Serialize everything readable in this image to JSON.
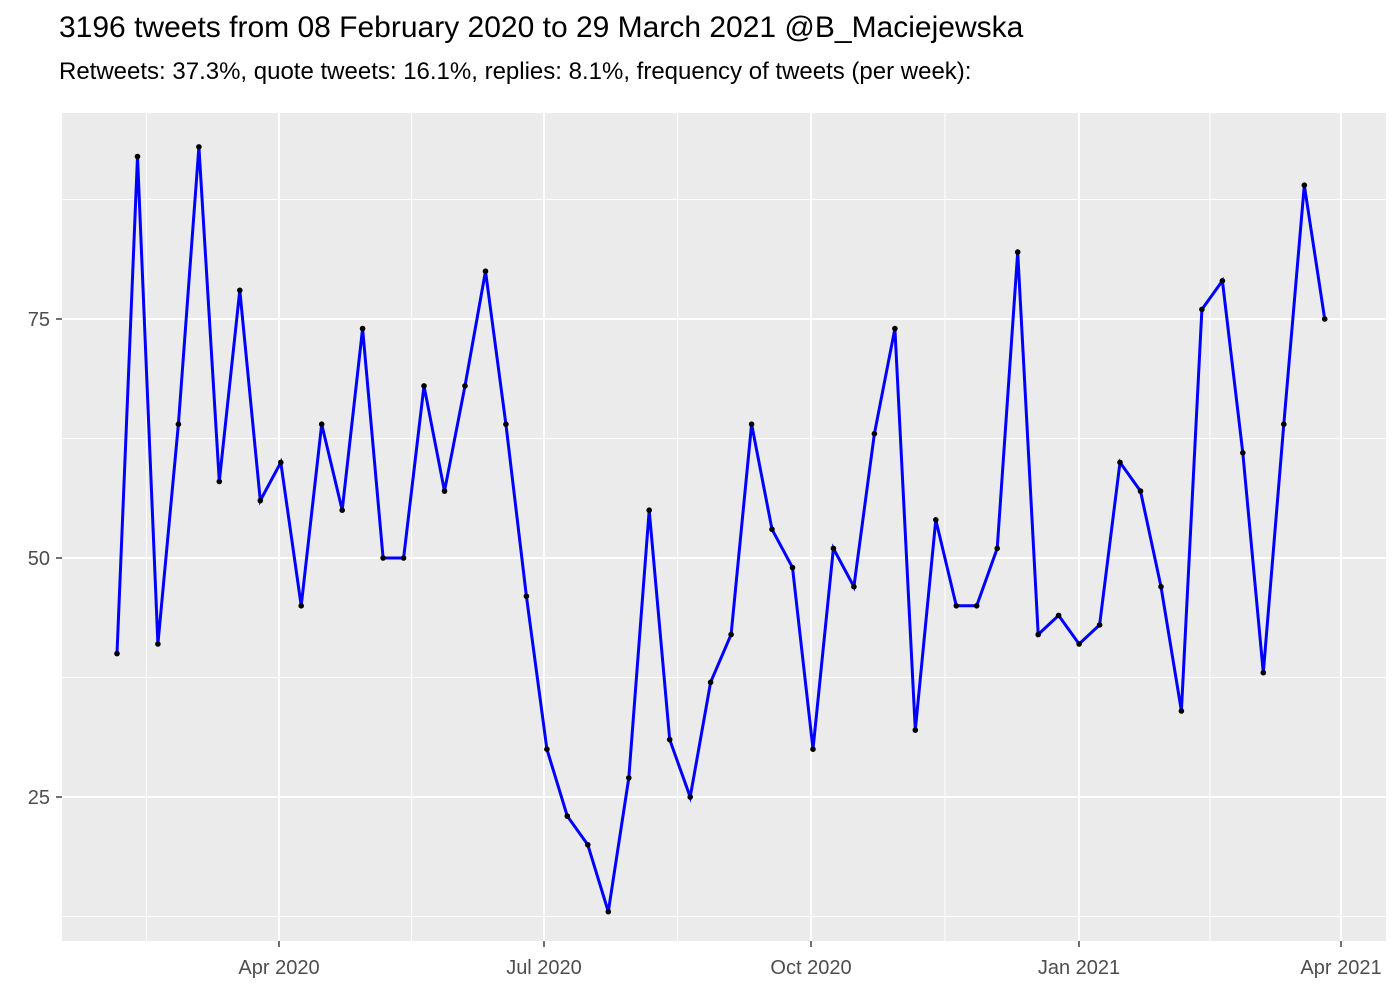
{
  "header": {
    "title": "3196 tweets from 08 February 2020 to 29 March 2021 @B_Maciejewska",
    "subtitle": "Retweets: 37.3%, quote tweets: 16.1%, replies: 8.1%, frequency of tweets (per week):"
  },
  "chart_data": {
    "type": "line",
    "title": "3196 tweets from 08 February 2020 to 29 March 2021 @B_Maciejewska",
    "subtitle": "Retweets: 37.3%, quote tweets: 16.1%, replies: 8.1%, frequency of tweets (per week):",
    "xlabel": "",
    "ylabel": "",
    "x_unit": "week",
    "x": [
      "2020-02-08",
      "2020-02-15",
      "2020-02-22",
      "2020-02-29",
      "2020-03-07",
      "2020-03-14",
      "2020-03-21",
      "2020-03-28",
      "2020-04-04",
      "2020-04-11",
      "2020-04-18",
      "2020-04-25",
      "2020-05-02",
      "2020-05-09",
      "2020-05-16",
      "2020-05-23",
      "2020-05-30",
      "2020-06-06",
      "2020-06-13",
      "2020-06-20",
      "2020-06-27",
      "2020-07-04",
      "2020-07-11",
      "2020-07-18",
      "2020-07-25",
      "2020-08-01",
      "2020-08-08",
      "2020-08-15",
      "2020-08-22",
      "2020-08-29",
      "2020-09-05",
      "2020-09-12",
      "2020-09-19",
      "2020-09-26",
      "2020-10-03",
      "2020-10-10",
      "2020-10-17",
      "2020-10-24",
      "2020-10-31",
      "2020-11-07",
      "2020-11-14",
      "2020-11-21",
      "2020-11-28",
      "2020-12-05",
      "2020-12-12",
      "2020-12-19",
      "2020-12-26",
      "2021-01-02",
      "2021-01-09",
      "2021-01-16",
      "2021-01-23",
      "2021-01-30",
      "2021-02-06",
      "2021-02-13",
      "2021-02-20",
      "2021-02-27",
      "2021-03-06",
      "2021-03-13",
      "2021-03-20",
      "2021-03-27"
    ],
    "values": [
      40,
      92,
      41,
      64,
      93,
      58,
      78,
      56,
      60,
      45,
      64,
      55,
      74,
      50,
      50,
      68,
      57,
      68,
      80,
      64,
      46,
      30,
      23,
      20,
      13,
      27,
      55,
      31,
      25,
      37,
      42,
      64,
      53,
      49,
      30,
      51,
      47,
      63,
      74,
      32,
      54,
      45,
      45,
      51,
      82,
      42,
      44,
      41,
      43,
      60,
      57,
      47,
      34,
      76,
      79,
      61,
      38,
      64,
      89,
      75
    ],
    "total_tweets": 3196,
    "y_ticks": [
      25,
      50,
      75
    ],
    "y_minor_ticks": [
      12.5,
      37.5,
      62.5,
      87.5
    ],
    "x_tick_labels": [
      "Apr 2020",
      "Jul 2020",
      "Oct 2020",
      "Jan 2021",
      "Apr 2021"
    ],
    "ylim_shown": [
      10,
      96
    ],
    "grid": "on",
    "legend": "none",
    "colors": {
      "line": "#0000FF",
      "point": "#000000",
      "panel_background": "#EBEBEB",
      "gridline": "#FFFFFF",
      "axis_text": "#4D4D4D",
      "tick_mark": "#333333"
    }
  }
}
